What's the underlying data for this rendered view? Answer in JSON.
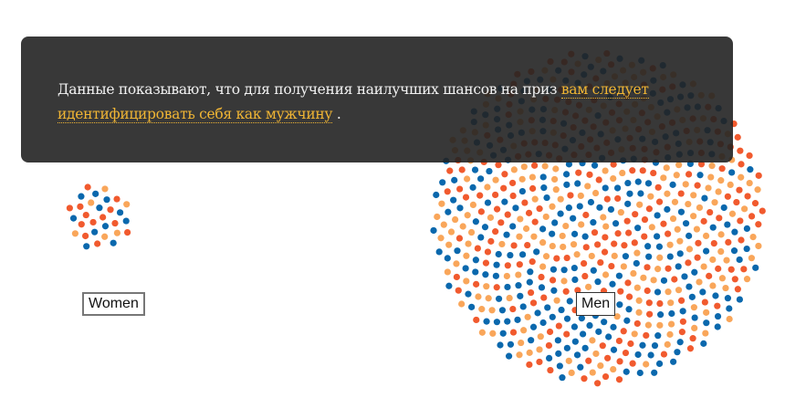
{
  "groups": [
    {
      "label": "Women",
      "count": 30
    },
    {
      "label": "Men",
      "count": 720
    }
  ],
  "colors": {
    "blue": "#0a68ad",
    "red": "#f15a2e",
    "orange": "#f9a65a"
  },
  "tooltip": {
    "text_before": "Данные показывают, что для получения наилучших шансов на приз ",
    "link": "вам следует идентифицировать себя как мужчину",
    "text_after": " ."
  }
}
